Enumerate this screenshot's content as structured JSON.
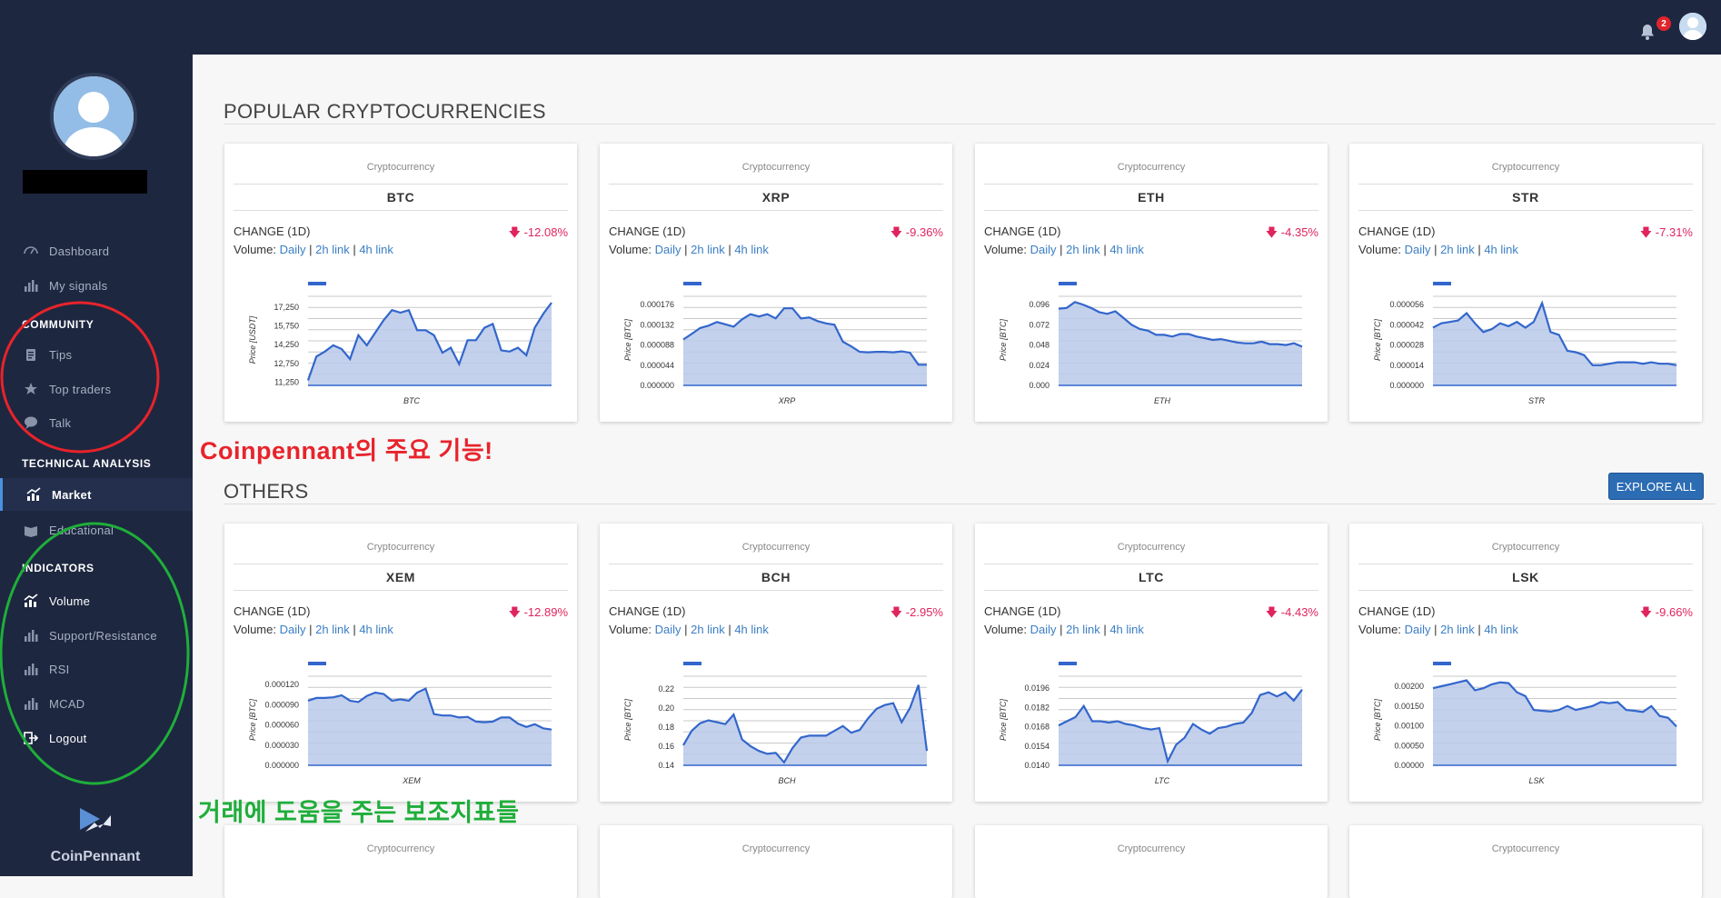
{
  "topbar": {
    "notification_count": "2"
  },
  "sidebar": {
    "nav": [
      {
        "label": "Dashboard",
        "icon": "dashboard-icon"
      },
      {
        "label": "My signals",
        "icon": "bar-chart-icon"
      },
      {
        "section": "COMMUNITY"
      },
      {
        "label": "Tips",
        "icon": "clipboard-icon"
      },
      {
        "label": "Top traders",
        "icon": "star-icon"
      },
      {
        "label": "Talk",
        "icon": "chat-bubble-icon"
      },
      {
        "section": "TECHNICAL ANALYSIS"
      },
      {
        "label": "Market",
        "icon": "chart-icon",
        "active": true
      },
      {
        "label": "Educational",
        "icon": "book-icon"
      },
      {
        "section": "INDICATORS"
      },
      {
        "label": "Volume",
        "icon": "chart-icon"
      },
      {
        "label": "Support/Resistance",
        "icon": "bar-chart-icon"
      },
      {
        "label": "RSI",
        "icon": "bar-chart-icon"
      },
      {
        "label": "MCAD",
        "icon": "bar-chart-icon"
      },
      {
        "label": "Logout",
        "icon": "logout-icon"
      }
    ],
    "brand": "CoinPennant"
  },
  "main": {
    "popular_title": "POPULAR CRYPTOCURRENCIES",
    "others_title": "OTHERS",
    "explore_label": "EXPLORE ALL",
    "card_caption": "Cryptocurrency",
    "change_label": "CHANGE (1D)",
    "volume_label": "Volume:",
    "link_daily": "Daily",
    "link_2h": "2h link",
    "link_4h": "4h link"
  },
  "annotations": {
    "features": "Coinpennant의 주요 기능!",
    "indicators": "거래에 도움을 주는 보조지표들"
  },
  "colors": {
    "sidebar": "#1d2740",
    "accent": "#3b7ec4",
    "negative": "#e0245e",
    "line": "#3366cc",
    "fill": "#b9c9ea",
    "red_circle": "#e8232b",
    "green_circle": "#1fae3a"
  },
  "chart_data": [
    {
      "type": "area",
      "symbol": "BTC",
      "change": "-12.08%",
      "ylabel": "Price [USDT]",
      "xlabel": "BTC",
      "yticks": [
        "11,250",
        "12,750",
        "14,250",
        "15,750",
        "17,250"
      ],
      "ylim": [
        11000,
        18250
      ],
      "values": [
        11400,
        13300,
        13700,
        14200,
        13900,
        13100,
        15000,
        14200,
        15200,
        16200,
        17000,
        16800,
        17000,
        15400,
        15400,
        15000,
        13600,
        14000,
        12700,
        14600,
        14600,
        15600,
        15900,
        13800,
        13700,
        14000,
        13400,
        15600,
        16700,
        17600
      ]
    },
    {
      "type": "area",
      "symbol": "XRP",
      "change": "-9.36%",
      "ylabel": "Price [BTC]",
      "xlabel": "XRP",
      "yticks": [
        "0.000000",
        "0.000044",
        "0.000088",
        "0.000132",
        "0.000176"
      ],
      "ylim": [
        0,
        0.000198
      ],
      "values": [
        0.0001,
        0.000112,
        0.000125,
        0.00013,
        0.000138,
        0.000133,
        0.000128,
        0.000144,
        0.000155,
        0.00015,
        0.000155,
        0.000146,
        0.000168,
        0.000168,
        0.000146,
        0.000148,
        0.00014,
        0.000135,
        0.000132,
        9.5e-05,
        8.5e-05,
        7.3e-05,
        7.2e-05,
        7.3e-05,
        7.3e-05,
        7.2e-05,
        7.4e-05,
        7.1e-05,
        4.5e-05,
        4.5e-05
      ]
    },
    {
      "type": "area",
      "symbol": "ETH",
      "change": "-4.35%",
      "ylabel": "Price [BTC]",
      "xlabel": "ETH",
      "yticks": [
        "0.000",
        "0.024",
        "0.048",
        "0.072",
        "0.096"
      ],
      "ylim": [
        0,
        0.108
      ],
      "values": [
        0.091,
        0.092,
        0.099,
        0.096,
        0.092,
        0.087,
        0.085,
        0.088,
        0.08,
        0.072,
        0.067,
        0.065,
        0.06,
        0.06,
        0.058,
        0.061,
        0.061,
        0.058,
        0.056,
        0.054,
        0.055,
        0.053,
        0.051,
        0.05,
        0.05,
        0.052,
        0.049,
        0.049,
        0.048,
        0.05,
        0.046
      ]
    },
    {
      "type": "area",
      "symbol": "STR",
      "change": "-7.31%",
      "ylabel": "Price [BTC]",
      "xlabel": "STR",
      "yticks": [
        "0.000000",
        "0.000014",
        "0.000028",
        "0.000042",
        "0.000056"
      ],
      "ylim": [
        0,
        6.3e-05
      ],
      "values": [
        4e-05,
        4.3e-05,
        4.4e-05,
        4.5e-05,
        5e-05,
        4.3e-05,
        3.7e-05,
        3.9e-05,
        4.3e-05,
        4.1e-05,
        4.4e-05,
        4e-05,
        4.4e-05,
        5.7e-05,
        3.7e-05,
        3.5e-05,
        2.4e-05,
        2.3e-05,
        2.1e-05,
        1.4e-05,
        1.4e-05,
        1.5e-05,
        1.6e-05,
        1.6e-05,
        1.6e-05,
        1.5e-05,
        1.6e-05,
        1.5e-05,
        1.5e-05,
        1.4e-05
      ]
    },
    {
      "type": "area",
      "symbol": "XEM",
      "change": "-12.89%",
      "ylabel": "Price [BTC]",
      "xlabel": "XEM",
      "yticks": [
        "0.000000",
        "0.000030",
        "0.000060",
        "0.000090",
        "0.000120"
      ],
      "ylim": [
        0,
        0.000135
      ],
      "values": [
        9.6e-05,
        0.0001,
        0.0001,
        0.000101,
        0.000104,
        9.6e-05,
        9.4e-05,
        0.000103,
        0.000108,
        0.000106,
        9.6e-05,
        9.8e-05,
        9.6e-05,
        0.000108,
        0.000114,
        7.6e-05,
        7.4e-05,
        7.4e-05,
        7.1e-05,
        7.2e-05,
        6.5e-05,
        6.4e-05,
        6.5e-05,
        7.1e-05,
        7.1e-05,
        6.2e-05,
        5.7e-05,
        6.1e-05,
        5.5e-05,
        5.3e-05
      ]
    },
    {
      "type": "area",
      "symbol": "BCH",
      "change": "-2.95%",
      "ylabel": "Price [BTC]",
      "xlabel": "BCH",
      "yticks": [
        "0.14",
        "0.16",
        "0.18",
        "0.20",
        "0.22"
      ],
      "ylim": [
        0.14,
        0.235
      ],
      "values": [
        0.161,
        0.176,
        0.184,
        0.187,
        0.185,
        0.183,
        0.193,
        0.167,
        0.16,
        0.155,
        0.152,
        0.153,
        0.143,
        0.158,
        0.169,
        0.171,
        0.171,
        0.171,
        0.176,
        0.181,
        0.174,
        0.177,
        0.189,
        0.199,
        0.203,
        0.205,
        0.185,
        0.2,
        0.224,
        0.155
      ]
    },
    {
      "type": "area",
      "symbol": "LTC",
      "change": "-4.43%",
      "ylabel": "Price [BTC]",
      "xlabel": "LTC",
      "yticks": [
        "0.0140",
        "0.0154",
        "0.0168",
        "0.0182",
        "0.0196"
      ],
      "ylim": [
        0.014,
        0.0206
      ],
      "values": [
        0.0169,
        0.0172,
        0.0175,
        0.0183,
        0.0172,
        0.0172,
        0.0171,
        0.0172,
        0.017,
        0.0169,
        0.0167,
        0.0166,
        0.0167,
        0.0143,
        0.0155,
        0.016,
        0.017,
        0.0166,
        0.0163,
        0.0167,
        0.0168,
        0.017,
        0.0171,
        0.0178,
        0.0191,
        0.0193,
        0.019,
        0.0193,
        0.0187,
        0.0195
      ]
    },
    {
      "type": "area",
      "symbol": "LSK",
      "change": "-9.66%",
      "ylabel": "Price [BTC]",
      "xlabel": "LSK",
      "yticks": [
        "0.00000",
        "0.00050",
        "0.00100",
        "0.00150",
        "0.00200"
      ],
      "ylim": [
        0,
        0.0023
      ],
      "values": [
        0.00195,
        0.002,
        0.00205,
        0.0021,
        0.00215,
        0.0019,
        0.00195,
        0.00205,
        0.0021,
        0.00208,
        0.00185,
        0.00175,
        0.0014,
        0.00138,
        0.00136,
        0.0014,
        0.0015,
        0.0014,
        0.00145,
        0.0015,
        0.0016,
        0.00157,
        0.0016,
        0.0014,
        0.00138,
        0.00135,
        0.0015,
        0.00125,
        0.0012,
        0.00098
      ]
    }
  ]
}
